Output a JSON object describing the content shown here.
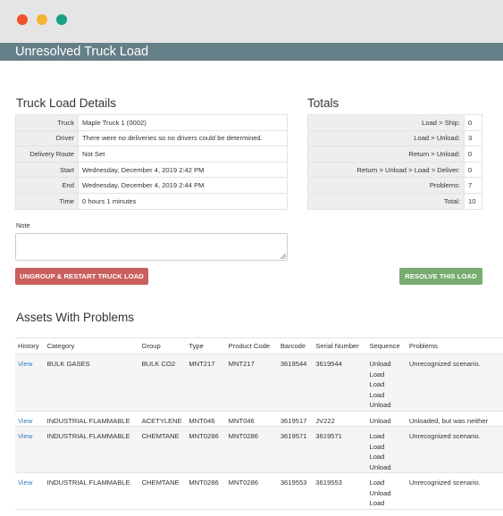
{
  "window": {
    "title": "Unresolved Truck Load"
  },
  "details": {
    "heading": "Truck Load Details",
    "rows": [
      {
        "label": "Truck",
        "value": "Maple Truck 1 (0002)"
      },
      {
        "label": "Driver",
        "value": "There were no deliveries so no drivers could be determined."
      },
      {
        "label": "Delivery Route",
        "value": "Not Set"
      },
      {
        "label": "Start",
        "value": "Wednesday, December 4, 2019 2:42 PM"
      },
      {
        "label": "End",
        "value": "Wednesday, December 4, 2019 2:44 PM"
      },
      {
        "label": "Time",
        "value": "0 hours 1 minutes"
      }
    ]
  },
  "totals": {
    "heading": "Totals",
    "rows": [
      {
        "label": "Load > Ship:",
        "value": "0"
      },
      {
        "label": "Load > Unload:",
        "value": "3"
      },
      {
        "label": "Return > Unload:",
        "value": "0"
      },
      {
        "label": "Return > Unload > Load > Deliver:",
        "value": "0"
      },
      {
        "label": "Problems:",
        "value": "7"
      },
      {
        "label": "Total:",
        "value": "10"
      }
    ]
  },
  "note": {
    "label": "Note",
    "value": ""
  },
  "actions": {
    "ungroup_label": "UNGROUP & RESTART TRUCK LOAD",
    "resolve_label": "RESOLVE THIS LOAD"
  },
  "assets": {
    "heading": "Assets With Problems",
    "columns": [
      "History",
      "Category",
      "Group",
      "Type",
      "Product Code",
      "Barcode",
      "Serial Number",
      "Sequence",
      "Problems"
    ],
    "rows": [
      {
        "history": "View",
        "category": "BULK GASES",
        "group": "BULK CO2",
        "type": "MNT217",
        "product_code": "MNT217",
        "barcode": "3619544",
        "serial": "3619544",
        "sequence": [
          "Unload",
          "Load",
          "Load",
          "Load",
          "Unload"
        ],
        "problems": "Unrecognized scenario."
      },
      {
        "history": "View",
        "category": "INDUSTRIAL FLAMMABLE",
        "group": "ACETYLENE",
        "type": "MNT046",
        "product_code": "MNT046",
        "barcode": "3619517",
        "serial": "JV222",
        "sequence": [
          "Unload"
        ],
        "problems": "Unloaded, but was neither"
      },
      {
        "history": "View",
        "category": "INDUSTRIAL FLAMMABLE",
        "group": "CHEMTANE",
        "type": "MNT0286",
        "product_code": "MNT0286",
        "barcode": "3619571",
        "serial": "3619571",
        "sequence": [
          "Load",
          "Load",
          "Load",
          "Unload"
        ],
        "problems": "Unrecognized scenario."
      },
      {
        "history": "View",
        "category": "INDUSTRIAL FLAMMABLE",
        "group": "CHEMTANE",
        "type": "MNT0286",
        "product_code": "MNT0286",
        "barcode": "3619553",
        "serial": "3619553",
        "sequence": [
          "Load",
          "Unload",
          "Load"
        ],
        "problems": "Unrecognized scenario."
      }
    ]
  }
}
